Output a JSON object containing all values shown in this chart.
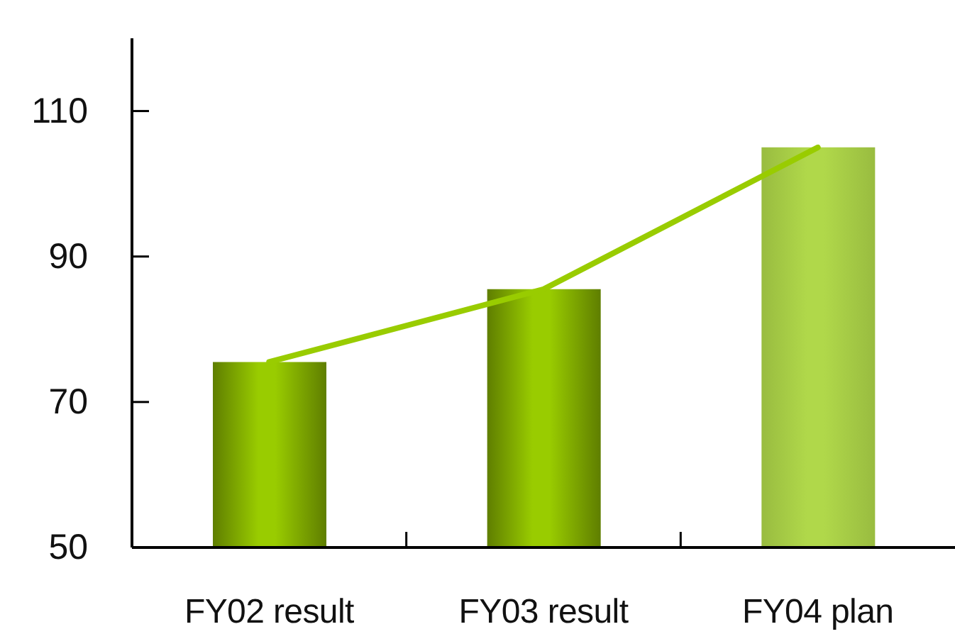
{
  "chart_data": {
    "type": "bar",
    "categories": [
      "FY02 result",
      "FY03 result",
      "FY04 plan"
    ],
    "series": [
      {
        "type": "bar",
        "colors": [
          "#99cc00",
          "#99cc00",
          "#b0d84a"
        ],
        "values": [
          75.5,
          85.5,
          105
        ]
      },
      {
        "type": "line",
        "color": "#99cc00",
        "values": [
          75.5,
          85.5,
          105
        ]
      }
    ],
    "ylim": [
      50,
      120
    ],
    "yticks": [
      50,
      70,
      90,
      110
    ]
  }
}
